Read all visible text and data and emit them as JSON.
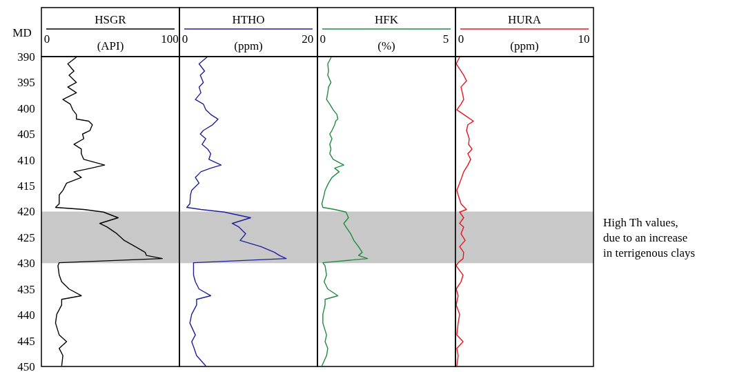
{
  "chart_data": [
    {
      "type": "line",
      "orientation": "horizontal",
      "title": "HSGR",
      "xlabel": "(API)",
      "ylabel": "MD",
      "xlim": [
        -4.5,
        107.9
      ],
      "xticks": [
        0,
        100
      ],
      "ylim": [
        450,
        390
      ],
      "yticks": [
        390,
        395,
        400,
        405,
        410,
        415,
        420,
        425,
        430,
        435,
        440,
        445,
        450
      ],
      "bands": [
        {
          "axis": "y",
          "from": 420,
          "to": 430,
          "color": "#c8c8c8"
        }
      ],
      "series": [
        {
          "color": "#000000",
          "x": [
            390.1,
            391.4,
            392.8,
            393.6,
            395,
            395.9,
            397,
            398.3,
            399.2,
            400.3,
            401.2,
            402.1,
            402.5,
            403.2,
            404.3,
            405,
            405.9,
            407,
            407.9,
            408.8,
            409.9,
            411,
            411.6,
            412.3,
            413.4,
            414.5,
            415.9,
            416.8,
            418.5,
            419.2,
            419.6,
            420.1,
            421.2,
            422.3,
            423,
            424.3,
            425.6,
            426.8,
            427.9,
            428.5,
            429.1,
            429.9,
            430.5,
            432.3,
            433.6,
            435,
            436.3,
            437,
            438.1,
            439.9,
            441.6,
            443.9,
            445.2,
            446.5,
            447.9,
            449.9
          ],
          "values": [
            24,
            17,
            22,
            18,
            24,
            17,
            24,
            13,
            19,
            21,
            24,
            24,
            34,
            37,
            35,
            29,
            30,
            22,
            28,
            28,
            30,
            47,
            36,
            22,
            28,
            16,
            13,
            10,
            10,
            7,
            30,
            46,
            58,
            43,
            49,
            57,
            63,
            72,
            80,
            81,
            94,
            10,
            9,
            10,
            12,
            18,
            28,
            12,
            12,
            8,
            7,
            10,
            16,
            10,
            13,
            12
          ]
        }
      ]
    },
    {
      "type": "line",
      "orientation": "horizontal",
      "title": "HTHO",
      "xlabel": "(ppm)",
      "xlim": [
        -0.9,
        21.6
      ],
      "xticks": [
        0,
        20
      ],
      "ylim": [
        450,
        390
      ],
      "tick_labels": "x",
      "bands": [
        {
          "axis": "y",
          "from": 420,
          "to": 430,
          "color": "#c8c8c8"
        }
      ],
      "series": [
        {
          "color": "#1f1f9a",
          "x": [
            390.1,
            391.4,
            392.8,
            393.6,
            395,
            395.9,
            397,
            398.3,
            399.2,
            400.3,
            401.2,
            402.1,
            402.5,
            403.2,
            404.3,
            405,
            405.9,
            407,
            407.9,
            408.8,
            409.9,
            411,
            411.6,
            412.3,
            413.4,
            414.5,
            415.9,
            416.8,
            418.5,
            419.2,
            419.6,
            420.1,
            421.2,
            422.3,
            423,
            424.3,
            425.6,
            426.8,
            427.9,
            428.5,
            429.1,
            429.9,
            430.5,
            432.3,
            433.6,
            435,
            436.3,
            437,
            438.1,
            439.9,
            441.6,
            443.9,
            445.2,
            446.5,
            447.9,
            449.9
          ],
          "values": [
            3.6,
            2.3,
            3.2,
            2.5,
            3.0,
            2.3,
            2.6,
            1.7,
            3.0,
            3.4,
            4.2,
            5.4,
            5.1,
            4.5,
            3.0,
            2.5,
            3.4,
            2.8,
            3.7,
            4.2,
            3.9,
            5.9,
            4.2,
            2.6,
            1.7,
            2.3,
            1.1,
            0.9,
            0.8,
            0.3,
            2.6,
            6.4,
            10.7,
            7.7,
            8.8,
            9.9,
            9.0,
            12.4,
            14.6,
            15.4,
            16.5,
            1.4,
            1.4,
            1.4,
            1.7,
            2.3,
            4.2,
            1.9,
            1.9,
            1.1,
            0.8,
            1.7,
            1.1,
            1.5,
            1.9,
            3.4
          ]
        }
      ]
    },
    {
      "type": "line",
      "orientation": "horizontal",
      "title": "HFK",
      "xlabel": "(%)",
      "xlim": [
        -0.22,
        5.39
      ],
      "xticks": [
        0,
        5
      ],
      "ylim": [
        450,
        390
      ],
      "tick_labels": "x",
      "bands": [
        {
          "axis": "y",
          "from": 420,
          "to": 430,
          "color": "#c8c8c8"
        }
      ],
      "series": [
        {
          "color": "#1e8a3c",
          "x": [
            390.1,
            391.4,
            392.8,
            393.6,
            395,
            395.9,
            397,
            398.3,
            399.2,
            400.3,
            401.2,
            402.1,
            402.5,
            403.2,
            404.3,
            405,
            405.9,
            407,
            407.9,
            408.8,
            409.9,
            411,
            411.6,
            412.3,
            413.4,
            414.5,
            415.9,
            416.8,
            418.5,
            419.2,
            419.6,
            420.1,
            421.2,
            422.3,
            423,
            424.3,
            425.6,
            426.8,
            427.9,
            428.5,
            429.1,
            429.9,
            430.5,
            432.3,
            433.6,
            435,
            436.3,
            437,
            438.1,
            439.9,
            441.6,
            443.9,
            445.2,
            446.5,
            447.9,
            449.9
          ],
          "values": [
            0.34,
            0.2,
            0.23,
            0.2,
            0.33,
            0.23,
            0.2,
            0.15,
            0.28,
            0.42,
            0.57,
            0.61,
            0.52,
            0.48,
            0.37,
            0.28,
            0.37,
            0.28,
            0.33,
            0.28,
            0.42,
            0.85,
            0.48,
            0.66,
            0.37,
            0.23,
            0.09,
            0.05,
            -0.04,
            0,
            0.48,
            0.94,
            1.04,
            0.85,
            0.94,
            1.13,
            1.26,
            1.45,
            1.6,
            1.45,
            1.82,
            0,
            0.09,
            0.15,
            0.05,
            0.2,
            0.61,
            0.09,
            0.09,
            0,
            0,
            0.15,
            0.09,
            0.2,
            0.15,
            -0.04
          ]
        }
      ]
    },
    {
      "type": "line",
      "orientation": "horizontal",
      "title": "HURA",
      "xlabel": "(ppm)",
      "xlim": [
        -0.45,
        10.79
      ],
      "xticks": [
        0,
        10
      ],
      "ylim": [
        450,
        390
      ],
      "tick_labels": "x",
      "bands": [
        {
          "axis": "y",
          "from": 420,
          "to": 430,
          "color": "#c8c8c8"
        }
      ],
      "annotations": [
        "High Th values, due to an increase in terrigenous clays"
      ],
      "series": [
        {
          "color": "#e8141c",
          "x": [
            390.1,
            391.4,
            392.8,
            393.6,
            394.7,
            395.9,
            397,
            398.3,
            399.2,
            400.3,
            401.2,
            402.5,
            403.2,
            404.3,
            405.9,
            407,
            407.9,
            408.8,
            409.9,
            411,
            412.3,
            413.4,
            414.5,
            415.9,
            416.8,
            418.5,
            419.6,
            420.1,
            421.2,
            422.3,
            423,
            424.3,
            425.6,
            426.8,
            427.9,
            429.1,
            429.9,
            430.5,
            432.3,
            433.6,
            435,
            436.3,
            438.1,
            439.9,
            441.6,
            443.9,
            445.2,
            446.5,
            447.9,
            449.9
          ],
          "values": [
            -0.11,
            -0.39,
            0,
            0.22,
            0.45,
            0,
            0.11,
            0.22,
            0,
            -0.34,
            0.22,
            1.01,
            0.56,
            0.45,
            0.67,
            0.62,
            0.9,
            0.56,
            0.79,
            0.56,
            0.22,
            0.06,
            -0.11,
            -0.34,
            -0.23,
            0,
            0.45,
            -0.11,
            0.22,
            -0.11,
            0.22,
            0,
            0.34,
            -0.11,
            0.22,
            0.17,
            -0.23,
            -0.39,
            0.17,
            0,
            -0.39,
            -0.23,
            -0.39,
            -0.11,
            -0.23,
            -0.34,
            0.17,
            -0.34,
            -0.23,
            -0.34
          ]
        }
      ]
    }
  ]
}
